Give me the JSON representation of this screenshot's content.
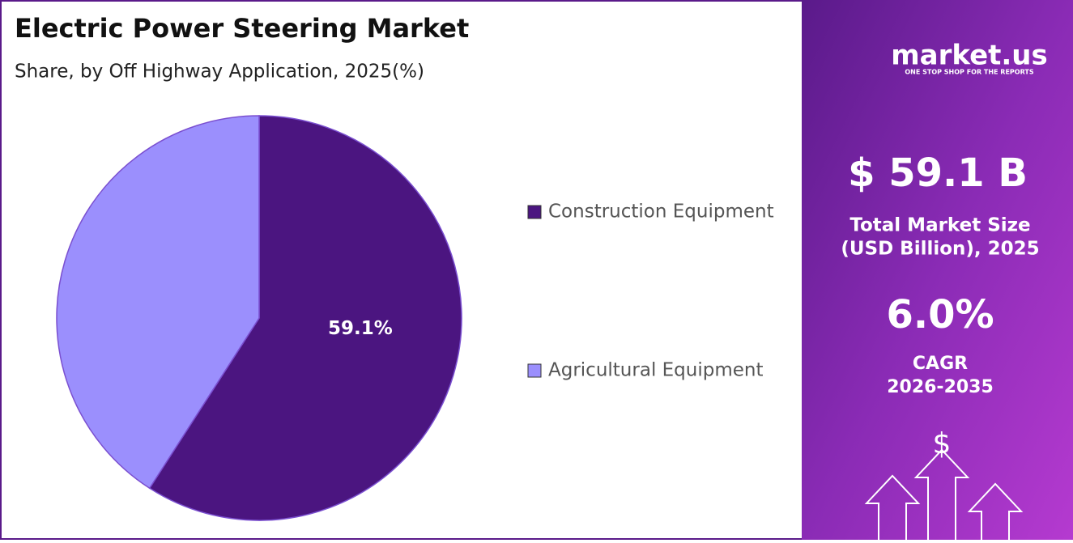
{
  "chart_data": {
    "type": "pie",
    "title": "Electric Power Steering Market",
    "subtitle": "Share, by Off Highway Application, 2025(%)",
    "categories": [
      "Construction Equipment",
      "Agricultural Equipment"
    ],
    "values": [
      59.1,
      40.9
    ],
    "value_labels": [
      "59.1%",
      null
    ],
    "colors": [
      "#4b1580",
      "#9b8ffd"
    ]
  },
  "panel": {
    "logo": "market.us",
    "tagline": "ONE STOP SHOP FOR THE REPORTS",
    "market_size": "$ 59.1 B",
    "market_size_label_1": "Total Market Size",
    "market_size_label_2": "(USD Billion), 2025",
    "cagr": "6.0%",
    "cagr_label": "CAGR",
    "cagr_period": "2026-2035",
    "icon": "$"
  }
}
